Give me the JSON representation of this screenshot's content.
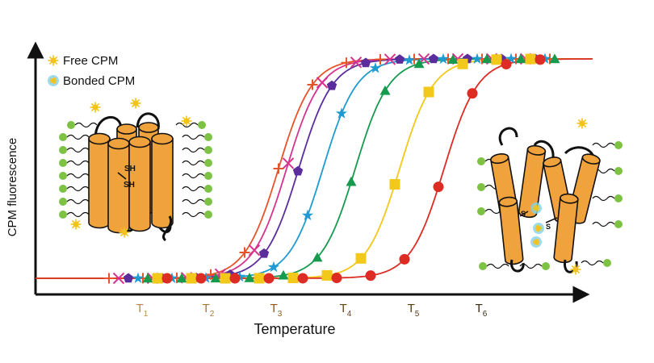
{
  "legend": {
    "free_label": "Free CPM",
    "bonded_label": "Bonded CPM"
  },
  "axes": {
    "xlabel": "Temperature",
    "ylabel": "CPM fluorescence"
  },
  "ticks": [
    {
      "label": "T",
      "sub": "1",
      "color": "#b58a4e"
    },
    {
      "label": "T",
      "sub": "2",
      "color": "#a8763a"
    },
    {
      "label": "T",
      "sub": "3",
      "color": "#8a5a22"
    },
    {
      "label": "T",
      "sub": "4",
      "color": "#6b4413"
    },
    {
      "label": "T",
      "sub": "5",
      "color": "#5a3a12"
    },
    {
      "label": "T",
      "sub": "6",
      "color": "#3a2a10"
    }
  ],
  "labels": {
    "sh_top": "SH",
    "sh_bottom": "SH",
    "s_left": "S",
    "s_right": "S"
  },
  "colors": {
    "helix": "#f0a23c",
    "lipid_head": "#7dc242",
    "free_cpm": "#f2c31b",
    "bonded_ring": "#7fd3f0"
  },
  "series": [
    {
      "marker": "plus",
      "color": "#e8542a"
    },
    {
      "marker": "cross",
      "color": "#d6338f"
    },
    {
      "marker": "pentagon",
      "color": "#5b2d9c"
    },
    {
      "marker": "star",
      "color": "#1f9bd1"
    },
    {
      "marker": "triangle",
      "color": "#169a4e"
    },
    {
      "marker": "square",
      "color": "#f2c81a"
    },
    {
      "marker": "circle",
      "color": "#dd2c24"
    }
  ]
}
